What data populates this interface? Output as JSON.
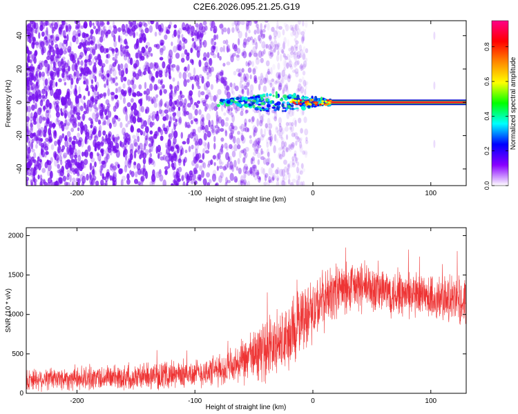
{
  "figure_title": "C2E6.2026.095.21.25.G19",
  "chart_data": [
    {
      "type": "heatmap",
      "title": "C2E6.2026.095.21.25.G19",
      "xlabel": "Height of straight line (km)",
      "ylabel": "Frequency (Hz)",
      "xlim": [
        -243,
        130
      ],
      "ylim": [
        -50,
        49
      ],
      "xticks": [
        -200,
        -100,
        0,
        100
      ],
      "xtick_labels": [
        "-200",
        "-100",
        "0",
        "100"
      ],
      "yticks": [
        -40,
        -20,
        0,
        20,
        40
      ],
      "ytick_labels": [
        "-40",
        "-20",
        "0",
        "20",
        "40"
      ],
      "colorbar": {
        "label": "Normalized spectral amplitude",
        "range": [
          0,
          0.95
        ],
        "ticks": [
          0,
          0.2,
          0.4,
          0.6,
          0.8
        ],
        "tick_labels": [
          "0.0",
          "0.2",
          "0.4",
          "0.6",
          "0.8"
        ],
        "colors": [
          "#ffffff",
          "#8800ff",
          "#0000ff",
          "#00ffff",
          "#00ff00",
          "#ffff00",
          "#ff8800",
          "#ff0000",
          "#ff0088"
        ]
      },
      "features": {
        "noise_region_km": [
          -243,
          -60
        ],
        "signal_onset_km": -80,
        "signal_line_hz": 0,
        "line_color": "#ff2222",
        "noise_color": "#7711ee"
      }
    },
    {
      "type": "line",
      "xlabel": "Height of straight line (km)",
      "ylabel": "SNR (10 * v/v)",
      "xlim": [
        -243,
        130
      ],
      "ylim": [
        0,
        2100
      ],
      "xticks": [
        -200,
        -100,
        0,
        100
      ],
      "xtick_labels": [
        "-200",
        "-100",
        "0",
        "100"
      ],
      "yticks": [
        0,
        500,
        1000,
        1500,
        2000
      ],
      "ytick_labels": [
        "0",
        "500",
        "1000",
        "1500",
        "2000"
      ],
      "series": [
        {
          "name": "SNR",
          "color": "#ee3333",
          "x": [
            -243,
            -200,
            -150,
            -100,
            -75,
            -60,
            -50,
            -40,
            -30,
            -20,
            -15,
            -10,
            -5,
            0,
            5,
            10,
            15,
            20,
            30,
            40,
            50,
            60,
            70,
            80,
            90,
            100,
            110,
            120,
            130
          ],
          "mean": [
            180,
            190,
            210,
            250,
            300,
            380,
            480,
            560,
            620,
            700,
            800,
            950,
            1000,
            1050,
            1120,
            1200,
            1250,
            1300,
            1330,
            1350,
            1330,
            1300,
            1270,
            1240,
            1220,
            1200,
            1190,
            1180,
            1180
          ],
          "spread": [
            170,
            180,
            190,
            210,
            240,
            320,
            400,
            450,
            500,
            520,
            520,
            500,
            480,
            470,
            450,
            440,
            420,
            400,
            390,
            380,
            370,
            360,
            360,
            350,
            350,
            360,
            360,
            360,
            360
          ]
        }
      ]
    }
  ]
}
